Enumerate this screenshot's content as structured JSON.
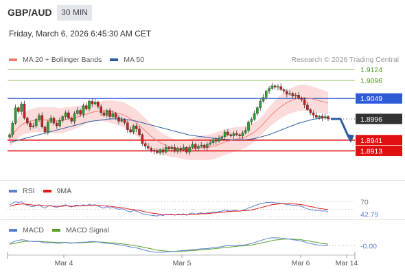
{
  "header": {
    "symbol": "GBP/AUD",
    "timeframe": "30 MIN",
    "datetime": "Friday, March 6, 2026 6:45:30 AM CET",
    "credit": "Research © 2026 Trading Central"
  },
  "legends": {
    "main": [
      {
        "label": "MA 20 + Bollinger Bands",
        "color": "#f47b75"
      },
      {
        "label": "MA 50",
        "color": "#2c5aa0"
      }
    ],
    "rsi": [
      {
        "label": "RSI",
        "color": "#5b7fd6"
      },
      {
        "label": "9MA",
        "color": "#e01818"
      }
    ],
    "macd": [
      {
        "label": "MACD",
        "color": "#5b7fd6"
      },
      {
        "label": "MACD Signal",
        "color": "#5aa02c"
      }
    ]
  },
  "colors": {
    "bull": "#2f9e2f",
    "bear": "#c62121",
    "band": "#fbd6d3",
    "resistance": "#8fbf5f",
    "pivot": "#2e5cd6",
    "support": "#e01010",
    "arrow": "#2c5aa0",
    "lastPrice": "#333333"
  },
  "chart_data": [
    {
      "type": "candlestick",
      "title": "GBP/AUD",
      "x_ticks": [
        "Mar 4",
        "Mar 5",
        "Mar 6",
        "Mar 14"
      ],
      "ylim": [
        1.8855,
        1.9135
      ],
      "levels": [
        {
          "value": 1.9124,
          "label": "1.9124",
          "kind": "resistance"
        },
        {
          "value": 1.9096,
          "label": "1.9096",
          "kind": "resistance"
        },
        {
          "value": 1.9049,
          "label": "1.9049",
          "kind": "pivot"
        },
        {
          "value": 1.8941,
          "label": "1.8941",
          "kind": "support"
        },
        {
          "value": 1.8913,
          "label": "1.8913",
          "kind": "support"
        }
      ],
      "last_price": {
        "value": 1.8996,
        "label": "1.8996"
      },
      "close": [
        1.8955,
        1.8985,
        1.9025,
        1.9015,
        1.9035,
        1.8998,
        1.8985,
        1.8975,
        1.8978,
        1.8995,
        1.9005,
        1.8975,
        1.8962,
        1.8988,
        1.8998,
        1.8985,
        1.8978,
        1.8992,
        1.9002,
        1.9012,
        1.8998,
        1.899,
        1.901,
        1.9018,
        1.9008,
        1.903,
        1.9022,
        1.9042,
        1.9035,
        1.904,
        1.9028,
        1.9012,
        1.9005,
        1.9018,
        1.9002,
        1.901,
        1.9,
        1.899,
        1.8994,
        1.8986,
        1.8968,
        1.8962,
        1.8978,
        1.897,
        1.8955,
        1.8932,
        1.8925,
        1.892,
        1.8915,
        1.8912,
        1.8908,
        1.8916,
        1.891,
        1.8922,
        1.8918,
        1.8922,
        1.8912,
        1.892,
        1.8916,
        1.8922,
        1.891,
        1.8922,
        1.893,
        1.892,
        1.8925,
        1.8928,
        1.8922,
        1.893,
        1.8934,
        1.8942,
        1.8938,
        1.8946,
        1.895,
        1.8962,
        1.8955,
        1.8952,
        1.8958,
        1.8955,
        1.8952,
        1.896,
        1.8966,
        1.8988,
        1.8995,
        1.901,
        1.9025,
        1.9042,
        1.9052,
        1.9068,
        1.9075,
        1.9082,
        1.9078,
        1.908,
        1.9072,
        1.9068,
        1.906,
        1.9062,
        1.9055,
        1.9058,
        1.905,
        1.9046,
        1.9032,
        1.902,
        1.9012,
        1.9006,
        1.9,
        1.9003,
        1.8998,
        1.9002,
        1.8996
      ],
      "series": [
        {
          "name": "MA 20",
          "values": [
            1.8945,
            1.8955,
            1.8965,
            1.8973,
            1.898,
            1.8985,
            1.8988,
            1.899,
            1.8992,
            1.8993,
            1.8994,
            1.8994,
            1.8993,
            1.8993,
            1.8993,
            1.8993,
            1.8992,
            1.8991,
            1.8992,
            1.8994,
            1.8996,
            1.8997,
            1.8999,
            1.9001,
            1.9003,
            1.9006,
            1.9008,
            1.9011,
            1.9013,
            1.9015,
            1.9016,
            1.9016,
            1.9016,
            1.9016,
            1.9015,
            1.9014,
            1.9012,
            1.901,
            1.9008,
            1.9005,
            1.9001,
            1.8996,
            1.8991,
            1.8986,
            1.8979,
            1.8972,
            1.8965,
            1.8958,
            1.8951,
            1.8945,
            1.894,
            1.8935,
            1.8931,
            1.8927,
            1.8924,
            1.8922,
            1.892,
            1.8918,
            1.8917,
            1.8917,
            1.8916,
            1.8917,
            1.8918,
            1.8919,
            1.892,
            1.8921,
            1.8921,
            1.8922,
            1.8923,
            1.8925,
            1.8927,
            1.893,
            1.8933,
            1.8936,
            1.8938,
            1.894,
            1.8942,
            1.8944,
            1.8945,
            1.8947,
            1.8949,
            1.8953,
            1.8957,
            1.8962,
            1.8968,
            1.8975,
            1.8983,
            1.8992,
            1.9,
            1.9008,
            1.9015,
            1.9022,
            1.9028,
            1.9033,
            1.9038,
            1.9042,
            1.9045,
            1.9048,
            1.905,
            1.9051,
            1.9051,
            1.905,
            1.9049,
            1.9047,
            1.9045,
            1.9043,
            1.9041,
            1.9039,
            1.9037
          ]
        },
        {
          "name": "MA 50",
          "values": [
            1.8935,
            1.8937,
            1.8939,
            1.8941,
            1.8943,
            1.8945,
            1.8947,
            1.8949,
            1.8951,
            1.8953,
            1.8955,
            1.8957,
            1.8959,
            1.8961,
            1.8963,
            1.8965,
            1.8967,
            1.8969,
            1.8971,
            1.8973,
            1.8975,
            1.8977,
            1.8979,
            1.8981,
            1.8983,
            1.8985,
            1.8987,
            1.8989,
            1.899,
            1.8991,
            1.8992,
            1.8993,
            1.8994,
            1.8995,
            1.8996,
            1.8996,
            1.8996,
            1.8996,
            1.8996,
            1.8995,
            1.8994,
            1.8993,
            1.8992,
            1.899,
            1.8988,
            1.8986,
            1.8984,
            1.8982,
            1.898,
            1.8978,
            1.8976,
            1.8974,
            1.8972,
            1.897,
            1.8968,
            1.8966,
            1.8964,
            1.8962,
            1.896,
            1.8958,
            1.8956,
            1.8954,
            1.8953,
            1.8952,
            1.8951,
            1.895,
            1.8949,
            1.8948,
            1.8947,
            1.8946,
            1.8945,
            1.8944,
            1.8944,
            1.8943,
            1.8943,
            1.8942,
            1.8942,
            1.8942,
            1.8942,
            1.8942,
            1.8942,
            1.8943,
            1.8944,
            1.8945,
            1.8947,
            1.8949,
            1.8951,
            1.8953,
            1.8955,
            1.8958,
            1.8961,
            1.8964,
            1.8967,
            1.897,
            1.8973,
            1.8976,
            1.8979,
            1.8982,
            1.8985,
            1.8987,
            1.8989,
            1.8991,
            1.8993,
            1.8995,
            1.8996,
            1.8997,
            1.8998,
            1.8999,
            1.9
          ]
        }
      ],
      "bollinger_width": 0.0028,
      "projection": {
        "from": 1.8996,
        "to": 1.8941
      }
    },
    {
      "type": "line",
      "title": "RSI",
      "ylim": [
        25,
        80
      ],
      "tick_labels": [
        "70",
        "42.79"
      ],
      "reference_lines": [
        70,
        50,
        30
      ],
      "series": [
        {
          "name": "RSI",
          "values": [
            62,
            66,
            70,
            68,
            70,
            64,
            60,
            58,
            57,
            60,
            62,
            56,
            53,
            58,
            60,
            57,
            55,
            58,
            60,
            62,
            58,
            56,
            60,
            61,
            58,
            62,
            60,
            63,
            61,
            62,
            59,
            55,
            53,
            57,
            53,
            55,
            52,
            50,
            51,
            49,
            45,
            43,
            47,
            45,
            42,
            38,
            36,
            35,
            34,
            33,
            32,
            35,
            33,
            37,
            36,
            37,
            34,
            37,
            36,
            38,
            34,
            38,
            40,
            37,
            39,
            40,
            38,
            40,
            41,
            43,
            42,
            44,
            45,
            48,
            46,
            45,
            47,
            46,
            45,
            47,
            49,
            54,
            56,
            60,
            62,
            65,
            66,
            68,
            68,
            69,
            67,
            67,
            65,
            64,
            62,
            62,
            60,
            61,
            59,
            58,
            54,
            51,
            49,
            48,
            46,
            47,
            45,
            46,
            42.79
          ]
        },
        {
          "name": "9MA",
          "values": [
            58,
            60,
            62,
            63,
            64,
            64,
            63,
            62,
            61,
            61,
            61,
            60,
            59,
            59,
            59,
            58,
            58,
            58,
            58,
            59,
            59,
            58,
            58,
            59,
            59,
            59,
            60,
            60,
            60,
            61,
            60,
            60,
            59,
            59,
            58,
            57,
            56,
            55,
            54,
            53,
            51,
            50,
            49,
            48,
            47,
            45,
            43,
            42,
            40,
            39,
            38,
            37,
            36,
            36,
            35,
            35,
            35,
            35,
            35,
            36,
            36,
            36,
            37,
            37,
            37,
            38,
            38,
            38,
            39,
            40,
            40,
            41,
            42,
            43,
            44,
            44,
            45,
            45,
            45,
            46,
            46,
            47,
            48,
            50,
            52,
            54,
            56,
            58,
            60,
            62,
            63,
            64,
            65,
            65,
            65,
            65,
            64,
            64,
            63,
            62,
            61,
            59,
            57,
            56,
            54,
            52,
            51,
            50,
            49
          ]
        }
      ]
    },
    {
      "type": "line",
      "title": "MACD",
      "ylim": [
        -0.0035,
        0.0035
      ],
      "tick_labels": [
        "-0.00"
      ],
      "series": [
        {
          "name": "MACD",
          "values": [
            0.0004,
            0.0008,
            0.0012,
            0.0014,
            0.0016,
            0.0015,
            0.0013,
            0.0011,
            0.001,
            0.001,
            0.001,
            0.0008,
            0.0006,
            0.0006,
            0.0007,
            0.0006,
            0.0005,
            0.0005,
            0.0006,
            0.0007,
            0.0006,
            0.0005,
            0.0006,
            0.0007,
            0.0007,
            0.0008,
            0.0008,
            0.001,
            0.001,
            0.001,
            0.0009,
            0.0007,
            0.0005,
            0.0005,
            0.0004,
            0.0003,
            0.0002,
            0.0,
            -0.0001,
            -0.0002,
            -0.0005,
            -0.0007,
            -0.0008,
            -0.001,
            -0.0012,
            -0.0015,
            -0.0018,
            -0.002,
            -0.0022,
            -0.0023,
            -0.0024,
            -0.0024,
            -0.0024,
            -0.0023,
            -0.0022,
            -0.0021,
            -0.0021,
            -0.002,
            -0.0019,
            -0.0018,
            -0.0018,
            -0.0017,
            -0.0015,
            -0.0015,
            -0.0014,
            -0.0013,
            -0.0013,
            -0.0012,
            -0.0011,
            -0.0009,
            -0.0008,
            -0.0007,
            -0.0006,
            -0.0004,
            -0.0003,
            -0.0003,
            -0.0002,
            -0.0002,
            -0.0002,
            -0.0001,
            0.0,
            0.0002,
            0.0004,
            0.0007,
            0.001,
            0.0013,
            0.0016,
            0.0019,
            0.0021,
            0.0022,
            0.0022,
            0.0022,
            0.0021,
            0.002,
            0.0019,
            0.0018,
            0.0016,
            0.0015,
            0.0013,
            0.0012,
            0.0009,
            0.0006,
            0.0004,
            0.0002,
            0.0,
            -0.0001,
            -0.0002,
            -0.0002,
            -0.0003
          ]
        },
        {
          "name": "MACD Signal",
          "values": [
            0.0002,
            0.0003,
            0.0005,
            0.0007,
            0.0009,
            0.001,
            0.0011,
            0.0011,
            0.0011,
            0.0011,
            0.0011,
            0.001,
            0.0009,
            0.0009,
            0.0008,
            0.0008,
            0.0007,
            0.0007,
            0.0007,
            0.0007,
            0.0007,
            0.0006,
            0.0006,
            0.0006,
            0.0006,
            0.0007,
            0.0007,
            0.0008,
            0.0008,
            0.0009,
            0.0009,
            0.0008,
            0.0008,
            0.0007,
            0.0006,
            0.0006,
            0.0005,
            0.0004,
            0.0003,
            0.0002,
            0.0001,
            -0.0001,
            -0.0002,
            -0.0004,
            -0.0005,
            -0.0007,
            -0.0009,
            -0.0011,
            -0.0013,
            -0.0015,
            -0.0017,
            -0.0018,
            -0.0019,
            -0.002,
            -0.0021,
            -0.0021,
            -0.0021,
            -0.0021,
            -0.0021,
            -0.002,
            -0.002,
            -0.0019,
            -0.0018,
            -0.0018,
            -0.0017,
            -0.0016,
            -0.0015,
            -0.0015,
            -0.0014,
            -0.0013,
            -0.0012,
            -0.0011,
            -0.001,
            -0.0009,
            -0.0008,
            -0.0007,
            -0.0006,
            -0.0005,
            -0.0004,
            -0.0004,
            -0.0003,
            -0.0002,
            -0.0001,
            0.0001,
            0.0003,
            0.0005,
            0.0007,
            0.0009,
            0.0011,
            0.0013,
            0.0015,
            0.0016,
            0.0017,
            0.0018,
            0.0018,
            0.0018,
            0.0018,
            0.0017,
            0.0017,
            0.0016,
            0.0014,
            0.0013,
            0.0011,
            0.0009,
            0.0008,
            0.0006,
            0.0004,
            0.0003,
            0.0002
          ]
        }
      ]
    }
  ]
}
